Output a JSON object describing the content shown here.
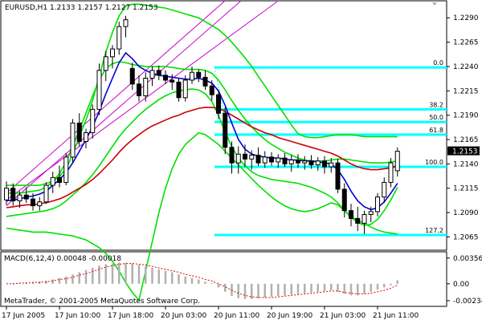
{
  "header": {
    "symbol": "EURUSD,H1",
    "ohlc": "1.2133 1.2157 1.2127 1.2153"
  },
  "indicator": {
    "label": "MACD(6,12,4) 0.00048 -0.00018"
  },
  "copyright": "MetaTrader, © 2001-2005 MetaQuotes Software Corp.",
  "colors": {
    "background": "#ffffff",
    "bull_candle": "#ffffff",
    "bear_candle": "#000000",
    "ma_blue": "#0000cc",
    "ma_red": "#cc0000",
    "bollinger": "#00e000",
    "fibonacci": "#00ffff",
    "trendline": "#cc00cc",
    "macd_hist": "#b0b0b0",
    "macd_signal": "#dd0000",
    "current_price_box": "#000000"
  },
  "chart_data": {
    "type": "candlestick",
    "y_ticks": [
      "1.2290",
      "1.2265",
      "1.2240",
      "1.2215",
      "1.2190",
      "1.2165",
      "1.2140",
      "1.2115",
      "1.2090",
      "1.2065"
    ],
    "y_tick_values": [
      1.229,
      1.2265,
      1.224,
      1.2215,
      1.219,
      1.2165,
      1.214,
      1.2115,
      1.209,
      1.2065
    ],
    "ylim": [
      1.2053,
      1.2305
    ],
    "x_ticks": [
      "17 Jun 2005",
      "17 Jun 10:00",
      "17 Jun 18:00",
      "20 Jun 03:00",
      "20 Jun 11:00",
      "20 Jun 19:00",
      "21 Jun 03:00",
      "21 Jun 11:00"
    ],
    "x_tick_index": [
      0,
      8,
      16,
      24,
      32,
      40,
      48,
      56
    ],
    "current_price": "1.2153",
    "current_price_value": 1.2153,
    "fibonacci": {
      "levels": [
        {
          "label": "0.0",
          "price": 1.2239
        },
        {
          "label": "38.2",
          "price": 1.2196
        },
        {
          "label": "50.0",
          "price": 1.2183
        },
        {
          "label": "61.8",
          "price": 1.217
        },
        {
          "label": "100.0",
          "price": 1.2137
        },
        {
          "label": "127.2",
          "price": 1.2067
        }
      ],
      "start_index": 32
    },
    "candles": [
      [
        1.2103,
        1.2122,
        1.2098,
        1.2115
      ],
      [
        1.2115,
        1.212,
        1.2097,
        1.2102
      ],
      [
        1.2102,
        1.2112,
        1.2095,
        1.2108
      ],
      [
        1.2108,
        1.2116,
        1.21,
        1.2104
      ],
      [
        1.2104,
        1.211,
        1.2092,
        1.2097
      ],
      [
        1.2097,
        1.2106,
        1.2092,
        1.2101
      ],
      [
        1.2101,
        1.2121,
        1.2099,
        1.2118
      ],
      [
        1.2118,
        1.2132,
        1.211,
        1.2126
      ],
      [
        1.2126,
        1.2138,
        1.2116,
        1.2121
      ],
      [
        1.2121,
        1.2151,
        1.2118,
        1.2147
      ],
      [
        1.2147,
        1.2186,
        1.2142,
        1.2182
      ],
      [
        1.2182,
        1.2192,
        1.2158,
        1.2163
      ],
      [
        1.2163,
        1.2176,
        1.2156,
        1.2172
      ],
      [
        1.2172,
        1.2201,
        1.2166,
        1.2196
      ],
      [
        1.2196,
        1.2243,
        1.219,
        1.2236
      ],
      [
        1.2236,
        1.2256,
        1.2225,
        1.225
      ],
      [
        1.225,
        1.2262,
        1.2238,
        1.2258
      ],
      [
        1.2258,
        1.2286,
        1.2252,
        1.2281
      ],
      [
        1.2281,
        1.2292,
        1.227,
        1.2288
      ],
      [
        1.2238,
        1.2244,
        1.2216,
        1.2222
      ],
      [
        1.2222,
        1.2231,
        1.2204,
        1.221
      ],
      [
        1.221,
        1.2234,
        1.2204,
        1.2228
      ],
      [
        1.2228,
        1.224,
        1.222,
        1.2236
      ],
      [
        1.2236,
        1.2241,
        1.2226,
        1.2231
      ],
      [
        1.2231,
        1.2236,
        1.2222,
        1.2226
      ],
      [
        1.2226,
        1.2232,
        1.2216,
        1.2224
      ],
      [
        1.2224,
        1.2228,
        1.2204,
        1.2208
      ],
      [
        1.2208,
        1.2231,
        1.2204,
        1.2226
      ],
      [
        1.2226,
        1.224,
        1.2222,
        1.2234
      ],
      [
        1.2234,
        1.2237,
        1.2224,
        1.2229
      ],
      [
        1.2229,
        1.2236,
        1.2216,
        1.222
      ],
      [
        1.222,
        1.2226,
        1.2205,
        1.2211
      ],
      [
        1.2211,
        1.2216,
        1.2186,
        1.2192
      ],
      [
        1.2192,
        1.2198,
        1.215,
        1.2157
      ],
      [
        1.2157,
        1.2163,
        1.213,
        1.2141
      ],
      [
        1.2141,
        1.2158,
        1.213,
        1.215
      ],
      [
        1.215,
        1.216,
        1.2137,
        1.2145
      ],
      [
        1.2145,
        1.2154,
        1.2134,
        1.2149
      ],
      [
        1.2149,
        1.2157,
        1.2138,
        1.2141
      ],
      [
        1.2141,
        1.2153,
        1.2136,
        1.2147
      ],
      [
        1.2147,
        1.2152,
        1.2138,
        1.2142
      ],
      [
        1.2142,
        1.215,
        1.2136,
        1.2146
      ],
      [
        1.2146,
        1.2151,
        1.2137,
        1.214
      ],
      [
        1.214,
        1.2149,
        1.2132,
        1.2144
      ],
      [
        1.2144,
        1.215,
        1.2136,
        1.2141
      ],
      [
        1.2141,
        1.2148,
        1.2134,
        1.2143
      ],
      [
        1.2143,
        1.2149,
        1.2135,
        1.2139
      ],
      [
        1.2139,
        1.2147,
        1.2133,
        1.2143
      ],
      [
        1.2143,
        1.2148,
        1.213,
        1.2137
      ],
      [
        1.2137,
        1.2146,
        1.2131,
        1.2141
      ],
      [
        1.2141,
        1.2145,
        1.211,
        1.2114
      ],
      [
        1.2114,
        1.212,
        1.2085,
        1.2092
      ],
      [
        1.2092,
        1.2099,
        1.2076,
        1.2084
      ],
      [
        1.2084,
        1.2096,
        1.2071,
        1.2079
      ],
      [
        1.2079,
        1.2092,
        1.2068,
        1.2088
      ],
      [
        1.2088,
        1.2096,
        1.208,
        1.2091
      ],
      [
        1.2091,
        1.211,
        1.2086,
        1.2106
      ],
      [
        1.2106,
        1.2126,
        1.21,
        1.2121
      ],
      [
        1.2121,
        1.2146,
        1.2116,
        1.2141
      ],
      [
        1.2133,
        1.2157,
        1.2127,
        1.2153
      ]
    ],
    "ma_blue": [
      1.2102,
      1.2103,
      1.2104,
      1.2106,
      1.2107,
      1.2109,
      1.2112,
      1.2118,
      1.2124,
      1.2131,
      1.2141,
      1.2153,
      1.2165,
      1.2178,
      1.2194,
      1.2212,
      1.2228,
      1.2244,
      1.2254,
      1.2248,
      1.224,
      1.2236,
      1.2233,
      1.2231,
      1.223,
      1.2229,
      1.2228,
      1.2227,
      1.2227,
      1.2228,
      1.2226,
      1.2223,
      1.2215,
      1.22,
      1.2182,
      1.2165,
      1.2155,
      1.215,
      1.2148,
      1.2147,
      1.2146,
      1.2146,
      1.2145,
      1.2144,
      1.2144,
      1.2143,
      1.2143,
      1.2142,
      1.2141,
      1.214,
      1.2134,
      1.2124,
      1.2112,
      1.2102,
      1.2096,
      1.2093,
      1.2095,
      1.2101,
      1.211,
      1.212
    ],
    "ma_red": [
      1.2095,
      1.2096,
      1.2097,
      1.2098,
      1.2098,
      1.2099,
      1.21,
      1.2102,
      1.2104,
      1.2107,
      1.2111,
      1.2115,
      1.2119,
      1.2124,
      1.213,
      1.2137,
      1.2144,
      1.2152,
      1.2159,
      1.2165,
      1.217,
      1.2175,
      1.2179,
      1.2182,
      1.2185,
      1.2188,
      1.219,
      1.2193,
      1.2195,
      1.2197,
      1.2198,
      1.2198,
      1.2197,
      1.2194,
      1.219,
      1.2186,
      1.2182,
      1.2178,
      1.2175,
      1.2172,
      1.217,
      1.2167,
      1.2165,
      1.2163,
      1.2161,
      1.2159,
      1.2157,
      1.2155,
      1.2153,
      1.2151,
      1.2148,
      1.2144,
      1.214,
      1.2137,
      1.2135,
      1.2134,
      1.2134,
      1.2135,
      1.2136,
      1.2138
    ],
    "bb_outer_upper": [
      1.2118,
      1.2118,
      1.2118,
      1.2118,
      1.2118,
      1.2118,
      1.212,
      1.2122,
      1.2127,
      1.2135,
      1.215,
      1.2168,
      1.2185,
      1.2205,
      1.223,
      1.2255,
      1.2275,
      1.2292,
      1.2302,
      1.2304,
      1.2304,
      1.2303,
      1.2302,
      1.2301,
      1.23,
      1.2298,
      1.2296,
      1.2294,
      1.2292,
      1.229,
      1.2286,
      1.2282,
      1.2278,
      1.2272,
      1.2265,
      1.2257,
      1.2249,
      1.224,
      1.223,
      1.222,
      1.221,
      1.22,
      1.219,
      1.218,
      1.2171,
      1.2168,
      1.2167,
      1.2167,
      1.2168,
      1.2169,
      1.217,
      1.217,
      1.217,
      1.2169,
      1.2168,
      1.2168,
      1.2168,
      1.2168,
      1.2168,
      1.2168
    ],
    "bb_outer_lower": [
      1.2074,
      1.2073,
      1.2072,
      1.2071,
      1.207,
      1.207,
      1.207,
      1.2069,
      1.2068,
      1.2067,
      1.2066,
      1.2064,
      1.2062,
      1.2058,
      1.2054,
      1.2048,
      1.204,
      1.203,
      1.2018,
      1.2008,
      1.2,
      1.203,
      1.206,
      1.209,
      1.2115,
      1.2135,
      1.215,
      1.216,
      1.2166,
      1.2172,
      1.217,
      1.2165,
      1.216,
      1.2153,
      1.2146,
      1.2139,
      1.2132,
      1.2125,
      1.2118,
      1.2112,
      1.2106,
      1.2101,
      1.2097,
      1.2094,
      1.2092,
      1.2091,
      1.2092,
      1.2094,
      1.2097,
      1.21,
      1.2098,
      1.2092,
      1.2086,
      1.2082,
      1.2079,
      1.2075,
      1.2072,
      1.207,
      1.2069,
      1.2068
    ],
    "bb_inner_upper": [
      1.211,
      1.211,
      1.211,
      1.2111,
      1.2112,
      1.2113,
      1.2116,
      1.2122,
      1.213,
      1.2142,
      1.2158,
      1.2175,
      1.2192,
      1.221,
      1.2226,
      1.2238,
      1.2243,
      1.2245,
      1.2244,
      1.2242,
      1.2241,
      1.224,
      1.224,
      1.224,
      1.224,
      1.2239,
      1.2238,
      1.2237,
      1.2237,
      1.2237,
      1.2236,
      1.2233,
      1.2226,
      1.2216,
      1.2205,
      1.2195,
      1.2186,
      1.2178,
      1.2171,
      1.2165,
      1.216,
      1.2156,
      1.2152,
      1.2149,
      1.2146,
      1.2144,
      1.2143,
      1.2143,
      1.2143,
      1.2144,
      1.2145,
      1.2145,
      1.2144,
      1.2143,
      1.2142,
      1.2141,
      1.2141,
      1.2141,
      1.2142,
      1.2143
    ],
    "bb_inner_lower": [
      1.2086,
      1.2087,
      1.2088,
      1.2089,
      1.209,
      1.2091,
      1.2092,
      1.2094,
      1.2097,
      1.2102,
      1.2108,
      1.2114,
      1.2121,
      1.2129,
      1.2138,
      1.2148,
      1.2158,
      1.2168,
      1.2176,
      1.2183,
      1.219,
      1.2196,
      1.2201,
      1.2206,
      1.221,
      1.2213,
      1.2215,
      1.2216,
      1.2217,
      1.2216,
      1.2212,
      1.2204,
      1.219,
      1.2172,
      1.2158,
      1.2146,
      1.2138,
      1.2132,
      1.2128,
      1.2126,
      1.2124,
      1.2123,
      1.2122,
      1.2121,
      1.212,
      1.2118,
      1.2116,
      1.2113,
      1.211,
      1.2106,
      1.21,
      1.2092,
      1.2085,
      1.208,
      1.2077,
      1.2078,
      1.2083,
      1.2092,
      1.2103,
      1.2116
    ],
    "macd": {
      "y_ticks": [
        "0.00356",
        "0.00",
        "-0.00234"
      ],
      "y_tick_values": [
        0.00356,
        0.0,
        -0.00234
      ],
      "ylim": [
        -0.0029,
        0.0042
      ],
      "histogram": [
        0.0,
        0.0001,
        0.0001,
        0.0002,
        0.0002,
        0.0003,
        0.0004,
        0.0006,
        0.0008,
        0.001,
        0.0013,
        0.0016,
        0.0019,
        0.0022,
        0.0025,
        0.0027,
        0.0028,
        0.0029,
        0.0029,
        0.0028,
        0.0026,
        0.0024,
        0.0022,
        0.002,
        0.0018,
        0.0016,
        0.0013,
        0.001,
        0.0008,
        0.0006,
        0.0003,
        0.0001,
        -0.0005,
        -0.0011,
        -0.0017,
        -0.002,
        -0.0021,
        -0.0021,
        -0.002,
        -0.0019,
        -0.0018,
        -0.0017,
        -0.0016,
        -0.0015,
        -0.0014,
        -0.0013,
        -0.0012,
        -0.0011,
        -0.001,
        -0.0009,
        -0.0011,
        -0.0014,
        -0.0016,
        -0.0016,
        -0.0014,
        -0.0011,
        -0.0008,
        -0.0005,
        -0.0002,
        0.00048
      ],
      "signal": [
        0.0,
        0.0,
        0.0001,
        0.0001,
        0.0002,
        0.0002,
        0.0003,
        0.0004,
        0.0006,
        0.0007,
        0.0009,
        0.0012,
        0.0014,
        0.0017,
        0.002,
        0.0023,
        0.0025,
        0.0027,
        0.0028,
        0.0028,
        0.0027,
        0.0026,
        0.0024,
        0.0022,
        0.002,
        0.0018,
        0.0016,
        0.0013,
        0.0011,
        0.0009,
        0.0006,
        0.0004,
        0.0,
        -0.0004,
        -0.0009,
        -0.0013,
        -0.0016,
        -0.0018,
        -0.0019,
        -0.0019,
        -0.0019,
        -0.0018,
        -0.0017,
        -0.0016,
        -0.0015,
        -0.0014,
        -0.0013,
        -0.0012,
        -0.0011,
        -0.001,
        -0.001,
        -0.0012,
        -0.0013,
        -0.0014,
        -0.0014,
        -0.0013,
        -0.0011,
        -0.0009,
        -0.0006,
        -0.00018
      ]
    }
  }
}
